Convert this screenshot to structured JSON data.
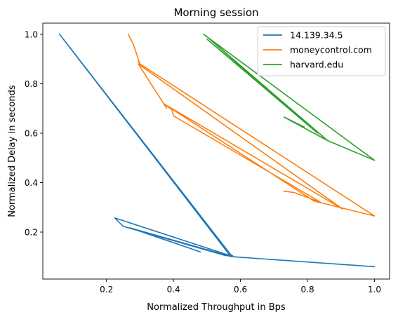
{
  "chart_data": {
    "type": "line",
    "title": "Morning session",
    "xlabel": "Normalized Throughput in Bps",
    "ylabel": "Normalized Delay in seconds",
    "xlim": [
      0.01,
      1.045
    ],
    "ylim": [
      0.01,
      1.045
    ],
    "xticks": [
      "0.2",
      "0.4",
      "0.6",
      "0.8",
      "1.0"
    ],
    "yticks": [
      "0.2",
      "0.4",
      "0.6",
      "0.8",
      "1.0"
    ],
    "xtick_values": [
      0.2,
      0.4,
      0.6,
      0.8,
      1.0
    ],
    "ytick_values": [
      0.2,
      0.4,
      0.6,
      0.8,
      1.0
    ],
    "grid": false,
    "legend_position": "upper right",
    "series": [
      {
        "name": "14.139.34.5",
        "color": "#1f77b4",
        "x": [
          0.06,
          0.57,
          0.58,
          1.0,
          0.58,
          0.225,
          0.25,
          0.555,
          0.57,
          0.06,
          0.575,
          0.575,
          0.27,
          0.48
        ],
        "y": [
          1.0,
          0.11,
          0.1,
          0.06,
          0.1,
          0.257,
          0.223,
          0.105,
          0.103,
          1.0,
          0.1,
          0.1,
          0.217,
          0.12
        ]
      },
      {
        "name": "moneycontrol.com",
        "color": "#ff7f0e",
        "x": [
          0.265,
          0.28,
          0.3,
          0.295,
          0.3,
          1.0,
          0.82,
          0.37,
          0.38,
          0.295,
          0.905,
          0.37,
          0.395,
          0.4,
          0.84,
          0.78,
          0.76,
          0.73
        ],
        "y": [
          1.0,
          0.96,
          0.88,
          0.89,
          0.88,
          0.265,
          0.325,
          0.72,
          0.7,
          0.88,
          0.293,
          0.72,
          0.695,
          0.67,
          0.32,
          0.35,
          0.36,
          0.365
        ]
      },
      {
        "name": "harvard.edu",
        "color": "#2ca02c",
        "x": [
          0.49,
          1.0,
          0.86,
          0.5,
          0.83,
          0.5,
          0.86,
          0.73,
          0.79
        ],
        "y": [
          1.0,
          0.49,
          0.57,
          0.99,
          0.6,
          0.98,
          0.57,
          0.665,
          0.625
        ]
      }
    ]
  }
}
